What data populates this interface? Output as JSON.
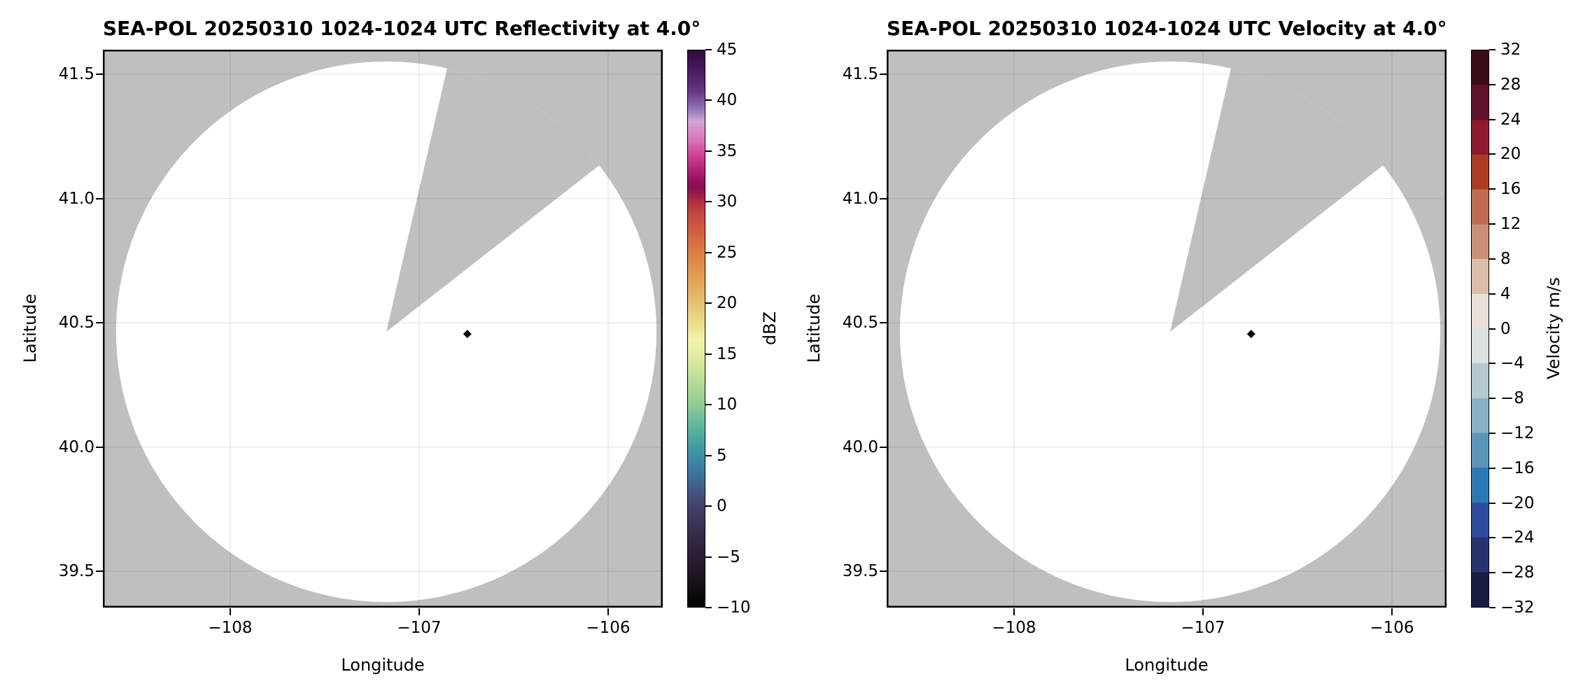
{
  "figure": {
    "background": "#ffffff",
    "instrument": "SEA-POL"
  },
  "chart_data": [
    {
      "type": "radar_ppi_map",
      "field": "Reflectivity",
      "title": "SEA-POL 20250310 1024-1024 UTC Reflectivity at 4.0°",
      "xlabel": "Longitude",
      "ylabel": "Latitude",
      "xlim": [
        -108.674,
        -105.711
      ],
      "ylim": [
        39.354,
        41.599
      ],
      "xticks": [
        -108,
        -107,
        -106
      ],
      "xtick_labels": [
        "−108",
        "−107",
        "−106"
      ],
      "yticks": [
        41.5,
        41.0,
        40.5,
        40.0,
        39.5
      ],
      "ytick_labels": [
        "41.5",
        "41.0",
        "40.5",
        "40.0",
        "39.5"
      ],
      "grid": true,
      "gridline_color": "rgba(0,0,0,0.08)",
      "background_color": "#bfbfbf",
      "scan_area_color": "#ffffff",
      "radar": {
        "center_lon": -107.174,
        "center_lat": 40.464,
        "radius_lon_deg": 1.43,
        "missing_sector_azimuth_deg": [
          13,
          52
        ]
      },
      "marker": {
        "lon": -106.745,
        "lat": 40.455,
        "shape": "diamond",
        "color": "#000000"
      },
      "colorbar": {
        "label": "dBZ",
        "vmin": -10,
        "vmax": 45,
        "style": "continuous",
        "tick_values": [
          45,
          40,
          35,
          30,
          25,
          20,
          15,
          10,
          5,
          0,
          -5,
          -10
        ],
        "tick_labels": [
          "45",
          "40",
          "35",
          "30",
          "25",
          "20",
          "15",
          "10",
          "5",
          "0",
          "−5",
          "−10"
        ],
        "stops": [
          [
            45,
            "#2f0a3d"
          ],
          [
            44,
            "#3c1150"
          ],
          [
            43,
            "#491a62"
          ],
          [
            42,
            "#572672"
          ],
          [
            41,
            "#653784"
          ],
          [
            40,
            "#7d57a1"
          ],
          [
            39,
            "#9a7cbc"
          ],
          [
            38.5,
            "#b393cc"
          ],
          [
            38,
            "#cda6d8"
          ],
          [
            37.5,
            "#d698cc"
          ],
          [
            37,
            "#d88ac2"
          ],
          [
            36,
            "#d970b4"
          ],
          [
            35,
            "#d14d9d"
          ],
          [
            34,
            "#c23388"
          ],
          [
            33,
            "#ac1f71"
          ],
          [
            32,
            "#93105c"
          ],
          [
            31.5,
            "#8b0e52"
          ],
          [
            31,
            "#8c164a"
          ],
          [
            30.5,
            "#a02545"
          ],
          [
            30,
            "#b23142"
          ],
          [
            29,
            "#c04540"
          ],
          [
            28,
            "#ca523f"
          ],
          [
            27,
            "#d2603f"
          ],
          [
            26,
            "#d86f42"
          ],
          [
            25,
            "#dd7d46"
          ],
          [
            24,
            "#df8b4b"
          ],
          [
            23,
            "#e19852"
          ],
          [
            22,
            "#e3a75b"
          ],
          [
            21,
            "#e4b464"
          ],
          [
            20,
            "#e6c272"
          ],
          [
            19,
            "#e9cf7f"
          ],
          [
            18,
            "#ecdc8d"
          ],
          [
            17,
            "#f0ea9e"
          ],
          [
            16.5,
            "#f2f1a9"
          ],
          [
            16,
            "#eff1a9"
          ],
          [
            15,
            "#e4eda3"
          ],
          [
            14,
            "#d5e79e"
          ],
          [
            13,
            "#c5e19a"
          ],
          [
            12,
            "#b3da96"
          ],
          [
            11,
            "#a3d394"
          ],
          [
            10,
            "#8fcb96"
          ],
          [
            9,
            "#7ac19b"
          ],
          [
            8,
            "#64b79e"
          ],
          [
            7,
            "#52aba1"
          ],
          [
            6,
            "#469da3"
          ],
          [
            5,
            "#3f8fa4"
          ],
          [
            4,
            "#3c80a2"
          ],
          [
            3,
            "#3d719a"
          ],
          [
            2,
            "#3f608c"
          ],
          [
            1,
            "#41507c"
          ],
          [
            0,
            "#41426c"
          ],
          [
            -1,
            "#3f3a5f"
          ],
          [
            -2,
            "#3a3153"
          ],
          [
            -3,
            "#352a48"
          ],
          [
            -4,
            "#30243d"
          ],
          [
            -5,
            "#2a1e33"
          ],
          [
            -6,
            "#241929"
          ],
          [
            -7,
            "#1d1420"
          ],
          [
            -8,
            "#150e17"
          ],
          [
            -9,
            "#0a070c"
          ],
          [
            -10,
            "#000000"
          ]
        ]
      }
    },
    {
      "type": "radar_ppi_map",
      "field": "Velocity",
      "title": "SEA-POL 20250310 1024-1024 UTC Velocity at 4.0°",
      "xlabel": "Longitude",
      "ylabel": "Latitude",
      "xlim": [
        -108.674,
        -105.711
      ],
      "ylim": [
        39.354,
        41.599
      ],
      "xticks": [
        -108,
        -107,
        -106
      ],
      "xtick_labels": [
        "−108",
        "−107",
        "−106"
      ],
      "yticks": [
        41.5,
        41.0,
        40.5,
        40.0,
        39.5
      ],
      "ytick_labels": [
        "41.5",
        "41.0",
        "40.5",
        "40.0",
        "39.5"
      ],
      "grid": true,
      "gridline_color": "rgba(0,0,0,0.08)",
      "background_color": "#bfbfbf",
      "scan_area_color": "#ffffff",
      "radar": {
        "center_lon": -107.174,
        "center_lat": 40.464,
        "radius_lon_deg": 1.43,
        "missing_sector_azimuth_deg": [
          13,
          52
        ]
      },
      "marker": {
        "lon": -106.745,
        "lat": 40.455,
        "shape": "diamond",
        "color": "#000000"
      },
      "colorbar": {
        "label": "Velocity m/s",
        "vmin": -32,
        "vmax": 32,
        "style": "discrete",
        "tick_values": [
          32,
          28,
          24,
          20,
          16,
          12,
          8,
          4,
          0,
          -4,
          -8,
          -12,
          -16,
          -20,
          -24,
          -28,
          -32
        ],
        "tick_labels": [
          "32",
          "28",
          "24",
          "20",
          "16",
          "12",
          "8",
          "4",
          "0",
          "−4",
          "−8",
          "−12",
          "−16",
          "−20",
          "−24",
          "−28",
          "−32"
        ],
        "segments": [
          [
            28,
            32,
            "#3a0c16"
          ],
          [
            24,
            28,
            "#5e1329"
          ],
          [
            20,
            24,
            "#8e1b2f"
          ],
          [
            16,
            20,
            "#ab3c24"
          ],
          [
            12,
            16,
            "#bd6e52"
          ],
          [
            8,
            12,
            "#cb9177"
          ],
          [
            4,
            8,
            "#dcbcab"
          ],
          [
            0,
            4,
            "#e9e0da"
          ],
          [
            -4,
            0,
            "#dbe0e3"
          ],
          [
            -8,
            -4,
            "#b4c8d1"
          ],
          [
            -12,
            -8,
            "#8ab0c4"
          ],
          [
            -16,
            -12,
            "#5d95b9"
          ],
          [
            -20,
            -16,
            "#2d78b3"
          ],
          [
            -24,
            -20,
            "#2e4da0"
          ],
          [
            -28,
            -24,
            "#2a326e"
          ],
          [
            -32,
            -28,
            "#1a1c42"
          ]
        ]
      }
    }
  ]
}
